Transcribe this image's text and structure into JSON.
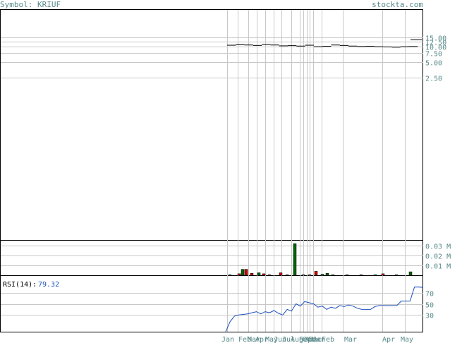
{
  "header": {
    "symbol_label": "Symbol: KRIUF",
    "site": "stockta.com"
  },
  "colors": {
    "up_volume": "#006400",
    "down_volume": "#cc0000",
    "rsi_line": "#1a4fbf",
    "price": "#000000",
    "grid": "#c8c8c8",
    "axis_text": "#5a8a8a"
  },
  "chart_data": [
    {
      "type": "line",
      "panel": "price",
      "yscale": "log",
      "yticks": [
        "15.00",
        "12.50",
        "10.00",
        "7.50",
        "5.00",
        "2.50"
      ],
      "yvalues": [
        15,
        12.5,
        10,
        7.5,
        5,
        2.5
      ],
      "xlabels": [
        "Jan",
        "Feb",
        "Mar",
        "Apr",
        "May",
        "Jun",
        "Jul",
        "Aug",
        "Sep",
        "Oct",
        "Nov",
        "Dec",
        "Jan",
        "Feb",
        "Mar",
        "Apr",
        "May"
      ],
      "series": [
        {
          "values": [
            10.6,
            10.8,
            10.7,
            10.5,
            10.9,
            10.7,
            10.3,
            10.4,
            10.2,
            10.6,
            9.9,
            10.1,
            10.7,
            10.5,
            10.2,
            10.0,
            10.1,
            9.9,
            9.8,
            9.7,
            9.9,
            10.0,
            13.5
          ]
        }
      ]
    },
    {
      "type": "bar",
      "panel": "volume",
      "yticks": [
        "0.03 M",
        "0.02 M",
        "0.01 M"
      ],
      "yvalues": [
        0.03,
        0.02,
        0.01
      ],
      "series": [
        {
          "values": [
            0.0005,
            0.0015,
            0.006,
            0.006,
            0.002,
            0.0025,
            0.0015,
            0.0005,
            0.0025,
            0.0005,
            0.032,
            0.0005,
            0.0005,
            0.004,
            0.001,
            0.002,
            0.0005,
            0.0005,
            0.0005,
            0.0005,
            0.0015,
            0.0005,
            0.0035
          ],
          "up": [
            true,
            false,
            true,
            false,
            false,
            true,
            false,
            false,
            false,
            true,
            true,
            true,
            true,
            false,
            true,
            true,
            true,
            true,
            true,
            true,
            false,
            true,
            true
          ]
        }
      ]
    },
    {
      "type": "line",
      "panel": "rsi",
      "label": "RSI(14):",
      "value_label": "79.32",
      "yticks": [
        "70",
        "50",
        "30"
      ],
      "yvalues": [
        70,
        50,
        30
      ],
      "series": [
        {
          "values": [
            0,
            18,
            28,
            30,
            31,
            32,
            34,
            36,
            32,
            36,
            34,
            38,
            33,
            30,
            40,
            37,
            50,
            46,
            54,
            52,
            50,
            44,
            46,
            40,
            44,
            42,
            47,
            45,
            48,
            46,
            42,
            40,
            40,
            40,
            45,
            47,
            47,
            47,
            47,
            47,
            55,
            55,
            55,
            80,
            80,
            79.32
          ]
        }
      ]
    }
  ]
}
